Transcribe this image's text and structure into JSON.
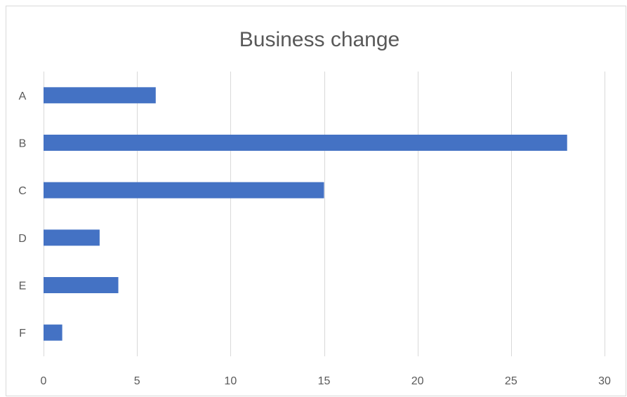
{
  "chart_data": {
    "type": "bar",
    "orientation": "horizontal",
    "title": "Business change",
    "xlabel": "",
    "ylabel": "",
    "categories": [
      "A",
      "B",
      "C",
      "D",
      "E",
      "F"
    ],
    "values": [
      6,
      28,
      15,
      3,
      4,
      1
    ],
    "xlim": [
      0,
      30
    ],
    "x_ticks": [
      0,
      5,
      10,
      15,
      20,
      25,
      30
    ],
    "grid": true,
    "legend": "none",
    "bar_color": "#4472c4"
  }
}
